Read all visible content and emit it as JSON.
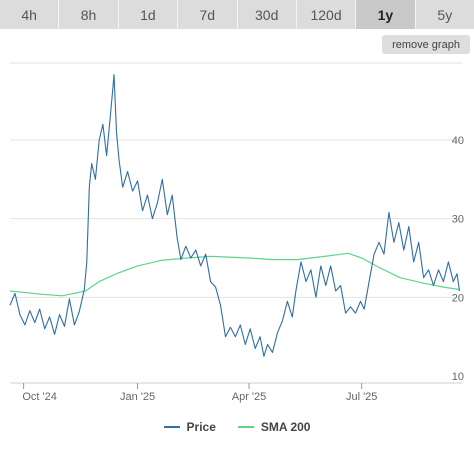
{
  "timeframe_tabs": [
    {
      "label": "4h",
      "active": false
    },
    {
      "label": "8h",
      "active": false
    },
    {
      "label": "1d",
      "active": false
    },
    {
      "label": "7d",
      "active": false
    },
    {
      "label": "30d",
      "active": false
    },
    {
      "label": "120d",
      "active": false
    },
    {
      "label": "1y",
      "active": true
    },
    {
      "label": "5y",
      "active": false
    }
  ],
  "remove_graph_label": "remove graph",
  "legend": [
    {
      "label": "Price",
      "color": "#2f6ea6"
    },
    {
      "label": "SMA 200",
      "color": "#5ed48a"
    }
  ],
  "chart_data": {
    "type": "line",
    "title": "",
    "xlabel": "",
    "ylabel": "",
    "x_range": [
      "2024-09-20",
      "2025-09-20"
    ],
    "ylim": [
      10,
      50
    ],
    "y_ticks": [
      10,
      20,
      30,
      40
    ],
    "x_ticks": [
      {
        "date": "2024-10-01",
        "label": "Oct '24"
      },
      {
        "date": "2025-01-01",
        "label": "Jan '25"
      },
      {
        "date": "2025-04-01",
        "label": "Apr '25"
      },
      {
        "date": "2025-07-01",
        "label": "Jul '25"
      }
    ],
    "grid": true,
    "series": [
      {
        "name": "Price",
        "color": "#2f6ea6",
        "points": [
          [
            "2024-09-20",
            19.0
          ],
          [
            "2024-09-24",
            20.5
          ],
          [
            "2024-09-28",
            17.8
          ],
          [
            "2024-10-02",
            16.5
          ],
          [
            "2024-10-06",
            18.3
          ],
          [
            "2024-10-10",
            16.8
          ],
          [
            "2024-10-14",
            18.5
          ],
          [
            "2024-10-18",
            16.0
          ],
          [
            "2024-10-22",
            17.5
          ],
          [
            "2024-10-26",
            15.3
          ],
          [
            "2024-10-30",
            17.8
          ],
          [
            "2024-11-03",
            16.3
          ],
          [
            "2024-11-07",
            19.8
          ],
          [
            "2024-11-11",
            16.5
          ],
          [
            "2024-11-15",
            18.2
          ],
          [
            "2024-11-19",
            21.0
          ],
          [
            "2024-11-21",
            24.5
          ],
          [
            "2024-11-23",
            34.0
          ],
          [
            "2024-11-25",
            37.0
          ],
          [
            "2024-11-28",
            35.0
          ],
          [
            "2024-12-01",
            40.0
          ],
          [
            "2024-12-04",
            42.0
          ],
          [
            "2024-12-07",
            38.0
          ],
          [
            "2024-12-10",
            43.0
          ],
          [
            "2024-12-12",
            46.5
          ],
          [
            "2024-12-13",
            48.3
          ],
          [
            "2024-12-15",
            41.0
          ],
          [
            "2024-12-17",
            37.5
          ],
          [
            "2024-12-20",
            34.0
          ],
          [
            "2024-12-24",
            36.0
          ],
          [
            "2024-12-28",
            33.5
          ],
          [
            "2025-01-01",
            34.8
          ],
          [
            "2025-01-05",
            31.0
          ],
          [
            "2025-01-09",
            33.0
          ],
          [
            "2025-01-13",
            30.0
          ],
          [
            "2025-01-17",
            32.0
          ],
          [
            "2025-01-21",
            35.0
          ],
          [
            "2025-01-25",
            30.5
          ],
          [
            "2025-01-29",
            33.0
          ],
          [
            "2025-02-02",
            27.5
          ],
          [
            "2025-02-05",
            24.8
          ],
          [
            "2025-02-09",
            26.5
          ],
          [
            "2025-02-13",
            25.0
          ],
          [
            "2025-02-17",
            26.0
          ],
          [
            "2025-02-21",
            24.0
          ],
          [
            "2025-02-25",
            25.5
          ],
          [
            "2025-03-01",
            22.0
          ],
          [
            "2025-03-05",
            21.3
          ],
          [
            "2025-03-09",
            19.0
          ],
          [
            "2025-03-13",
            15.0
          ],
          [
            "2025-03-17",
            16.2
          ],
          [
            "2025-03-21",
            15.0
          ],
          [
            "2025-03-25",
            16.5
          ],
          [
            "2025-03-29",
            14.0
          ],
          [
            "2025-04-02",
            16.0
          ],
          [
            "2025-04-06",
            13.5
          ],
          [
            "2025-04-10",
            15.0
          ],
          [
            "2025-04-13",
            12.5
          ],
          [
            "2025-04-16",
            14.0
          ],
          [
            "2025-04-20",
            13.0
          ],
          [
            "2025-04-24",
            15.5
          ],
          [
            "2025-04-28",
            17.0
          ],
          [
            "2025-05-02",
            19.5
          ],
          [
            "2025-05-06",
            17.5
          ],
          [
            "2025-05-09",
            21.0
          ],
          [
            "2025-05-13",
            24.5
          ],
          [
            "2025-05-17",
            22.0
          ],
          [
            "2025-05-21",
            23.5
          ],
          [
            "2025-05-25",
            20.0
          ],
          [
            "2025-05-29",
            24.0
          ],
          [
            "2025-06-02",
            21.5
          ],
          [
            "2025-06-06",
            24.0
          ],
          [
            "2025-06-10",
            20.8
          ],
          [
            "2025-06-14",
            21.5
          ],
          [
            "2025-06-18",
            18.0
          ],
          [
            "2025-06-22",
            18.8
          ],
          [
            "2025-06-26",
            18.0
          ],
          [
            "2025-06-30",
            19.5
          ],
          [
            "2025-07-03",
            18.5
          ],
          [
            "2025-07-07",
            22.0
          ],
          [
            "2025-07-11",
            25.5
          ],
          [
            "2025-07-15",
            27.0
          ],
          [
            "2025-07-19",
            25.5
          ],
          [
            "2025-07-23",
            30.8
          ],
          [
            "2025-07-27",
            27.0
          ],
          [
            "2025-07-31",
            29.5
          ],
          [
            "2025-08-04",
            26.0
          ],
          [
            "2025-08-08",
            29.0
          ],
          [
            "2025-08-12",
            24.5
          ],
          [
            "2025-08-16",
            27.0
          ],
          [
            "2025-08-20",
            22.5
          ],
          [
            "2025-08-24",
            23.5
          ],
          [
            "2025-08-28",
            21.5
          ],
          [
            "2025-09-01",
            23.5
          ],
          [
            "2025-09-05",
            22.0
          ],
          [
            "2025-09-09",
            24.5
          ],
          [
            "2025-09-13",
            22.0
          ],
          [
            "2025-09-16",
            23.0
          ],
          [
            "2025-09-18",
            20.8
          ]
        ]
      },
      {
        "name": "SMA 200",
        "color": "#5ed48a",
        "points": [
          [
            "2024-09-20",
            20.8
          ],
          [
            "2024-10-15",
            20.4
          ],
          [
            "2024-11-01",
            20.2
          ],
          [
            "2024-11-20",
            20.8
          ],
          [
            "2024-12-01",
            22.0
          ],
          [
            "2024-12-15",
            23.0
          ],
          [
            "2025-01-01",
            24.0
          ],
          [
            "2025-01-20",
            24.7
          ],
          [
            "2025-02-10",
            25.0
          ],
          [
            "2025-03-01",
            25.2
          ],
          [
            "2025-04-01",
            25.0
          ],
          [
            "2025-04-20",
            24.8
          ],
          [
            "2025-05-10",
            24.8
          ],
          [
            "2025-06-01",
            25.2
          ],
          [
            "2025-06-20",
            25.6
          ],
          [
            "2025-07-01",
            25.0
          ],
          [
            "2025-07-15",
            23.8
          ],
          [
            "2025-08-01",
            22.5
          ],
          [
            "2025-08-20",
            21.8
          ],
          [
            "2025-09-05",
            21.3
          ],
          [
            "2025-09-18",
            21.0
          ]
        ]
      }
    ]
  }
}
